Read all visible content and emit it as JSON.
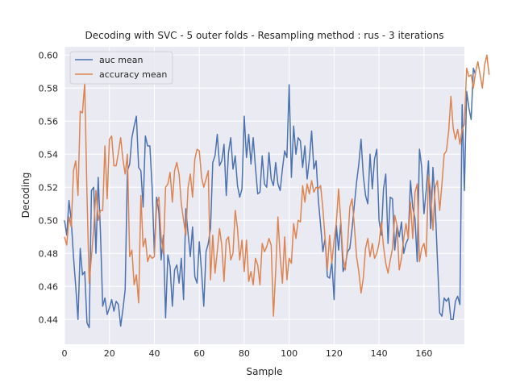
{
  "chart_data": {
    "type": "line",
    "title": "Decoding  with SVC - 5 outer folds - Resampling method : rus - 3 iterations",
    "xlabel": "Sample",
    "ylabel": "Decoding",
    "xlim": [
      0,
      178
    ],
    "ylim": [
      0.425,
      0.605
    ],
    "xticks": [
      0,
      20,
      40,
      60,
      80,
      100,
      120,
      140,
      160
    ],
    "yticks": [
      0.44,
      0.46,
      0.48,
      0.5,
      0.52,
      0.54,
      0.56,
      0.58,
      0.6
    ],
    "xtick_labels": [
      "0",
      "20",
      "40",
      "60",
      "80",
      "100",
      "120",
      "140",
      "160"
    ],
    "ytick_labels": [
      "0.44",
      "0.46",
      "0.48",
      "0.50",
      "0.52",
      "0.54",
      "0.56",
      "0.58",
      "0.60"
    ],
    "grid": true,
    "legend_position": "top-left",
    "series": [
      {
        "name": "auc mean",
        "color": "#4c72b0",
        "values": [
          0.5,
          0.491,
          0.512,
          0.5,
          0.478,
          0.46,
          0.44,
          0.483,
          0.467,
          0.469,
          0.438,
          0.435,
          0.518,
          0.52,
          0.48,
          0.526,
          0.493,
          0.448,
          0.453,
          0.443,
          0.447,
          0.452,
          0.445,
          0.451,
          0.449,
          0.436,
          0.446,
          0.458,
          0.53,
          0.534,
          0.55,
          0.557,
          0.563,
          0.532,
          0.53,
          0.508,
          0.551,
          0.545,
          0.545,
          0.52,
          0.48,
          0.514,
          0.505,
          0.476,
          0.491,
          0.441,
          0.479,
          0.472,
          0.448,
          0.47,
          0.473,
          0.462,
          0.477,
          0.452,
          0.507,
          0.492,
          0.478,
          0.496,
          0.466,
          0.462,
          0.487,
          0.469,
          0.448,
          0.481,
          0.486,
          0.495,
          0.535,
          0.539,
          0.552,
          0.533,
          0.536,
          0.546,
          0.515,
          0.541,
          0.55,
          0.531,
          0.539,
          0.521,
          0.514,
          0.519,
          0.563,
          0.538,
          0.552,
          0.534,
          0.55,
          0.532,
          0.516,
          0.517,
          0.539,
          0.522,
          0.52,
          0.541,
          0.525,
          0.521,
          0.535,
          0.522,
          0.518,
          0.531,
          0.542,
          0.538,
          0.582,
          0.526,
          0.557,
          0.54,
          0.55,
          0.548,
          0.532,
          0.545,
          0.525,
          0.537,
          0.554,
          0.531,
          0.536,
          0.512,
          0.497,
          0.481,
          0.489,
          0.466,
          0.465,
          0.475,
          0.452,
          0.497,
          0.482,
          0.499,
          0.469,
          0.473,
          0.481,
          0.483,
          0.495,
          0.509,
          0.523,
          0.534,
          0.549,
          0.527,
          0.515,
          0.51,
          0.54,
          0.519,
          0.537,
          0.543,
          0.5,
          0.491,
          0.519,
          0.528,
          0.486,
          0.514,
          0.513,
          0.482,
          0.497,
          0.49,
          0.499,
          0.48,
          0.486,
          0.489,
          0.524,
          0.508,
          0.501,
          0.475,
          0.543,
          0.532,
          0.504,
          0.518,
          0.536,
          0.495,
          0.532,
          0.509,
          0.476,
          0.444,
          0.442,
          0.453,
          0.451,
          0.453,
          0.44,
          0.44,
          0.451,
          0.454,
          0.449,
          0.57,
          0.518,
          0.578,
          0.568,
          0.561,
          0.592,
          0.588
        ]
      },
      {
        "name": "accuracy mean",
        "color": "#dd8452",
        "values": [
          0.49,
          0.485,
          0.502,
          0.496,
          0.53,
          0.536,
          0.515,
          0.566,
          0.565,
          0.583,
          0.516,
          0.462,
          0.478,
          0.495,
          0.518,
          0.5,
          0.506,
          0.506,
          0.545,
          0.513,
          0.549,
          0.551,
          0.533,
          0.533,
          0.541,
          0.55,
          0.537,
          0.528,
          0.54,
          0.478,
          0.482,
          0.461,
          0.467,
          0.45,
          0.515,
          0.484,
          0.489,
          0.475,
          0.479,
          0.477,
          0.478,
          0.509,
          0.514,
          0.49,
          0.48,
          0.52,
          0.522,
          0.529,
          0.511,
          0.53,
          0.535,
          0.528,
          0.51,
          0.5,
          0.491,
          0.52,
          0.528,
          0.514,
          0.537,
          0.543,
          0.542,
          0.526,
          0.52,
          0.525,
          0.53,
          0.464,
          0.491,
          0.468,
          0.481,
          0.495,
          0.485,
          0.463,
          0.488,
          0.49,
          0.476,
          0.48,
          0.506,
          0.495,
          0.476,
          0.488,
          0.469,
          0.488,
          0.463,
          0.469,
          0.461,
          0.477,
          0.473,
          0.461,
          0.486,
          0.481,
          0.484,
          0.489,
          0.485,
          0.442,
          0.469,
          0.502,
          0.478,
          0.462,
          0.49,
          0.464,
          0.477,
          0.474,
          0.498,
          0.489,
          0.5,
          0.499,
          0.521,
          0.511,
          0.522,
          0.516,
          0.524,
          0.517,
          0.52,
          0.519,
          0.521,
          0.507,
          0.489,
          0.47,
          0.491,
          0.474,
          0.488,
          0.499,
          0.519,
          0.499,
          0.477,
          0.47,
          0.485,
          0.508,
          0.513,
          0.497,
          0.478,
          0.469,
          0.456,
          0.465,
          0.483,
          0.489,
          0.478,
          0.486,
          0.477,
          0.48,
          0.486,
          0.499,
          0.484,
          0.474,
          0.468,
          0.476,
          0.483,
          0.503,
          0.497,
          0.47,
          0.477,
          0.489,
          0.498,
          0.489,
          0.511,
          0.489,
          0.517,
          0.522,
          0.475,
          0.483,
          0.486,
          0.478,
          0.527,
          0.518,
          0.494,
          0.52,
          0.524,
          0.506,
          0.522,
          0.54,
          0.542,
          0.554,
          0.575,
          0.556,
          0.549,
          0.555,
          0.546,
          0.555,
          0.558,
          0.592,
          0.587,
          0.588,
          0.58,
          0.59,
          0.596,
          0.588,
          0.58,
          0.594,
          0.6,
          0.588
        ]
      }
    ]
  }
}
